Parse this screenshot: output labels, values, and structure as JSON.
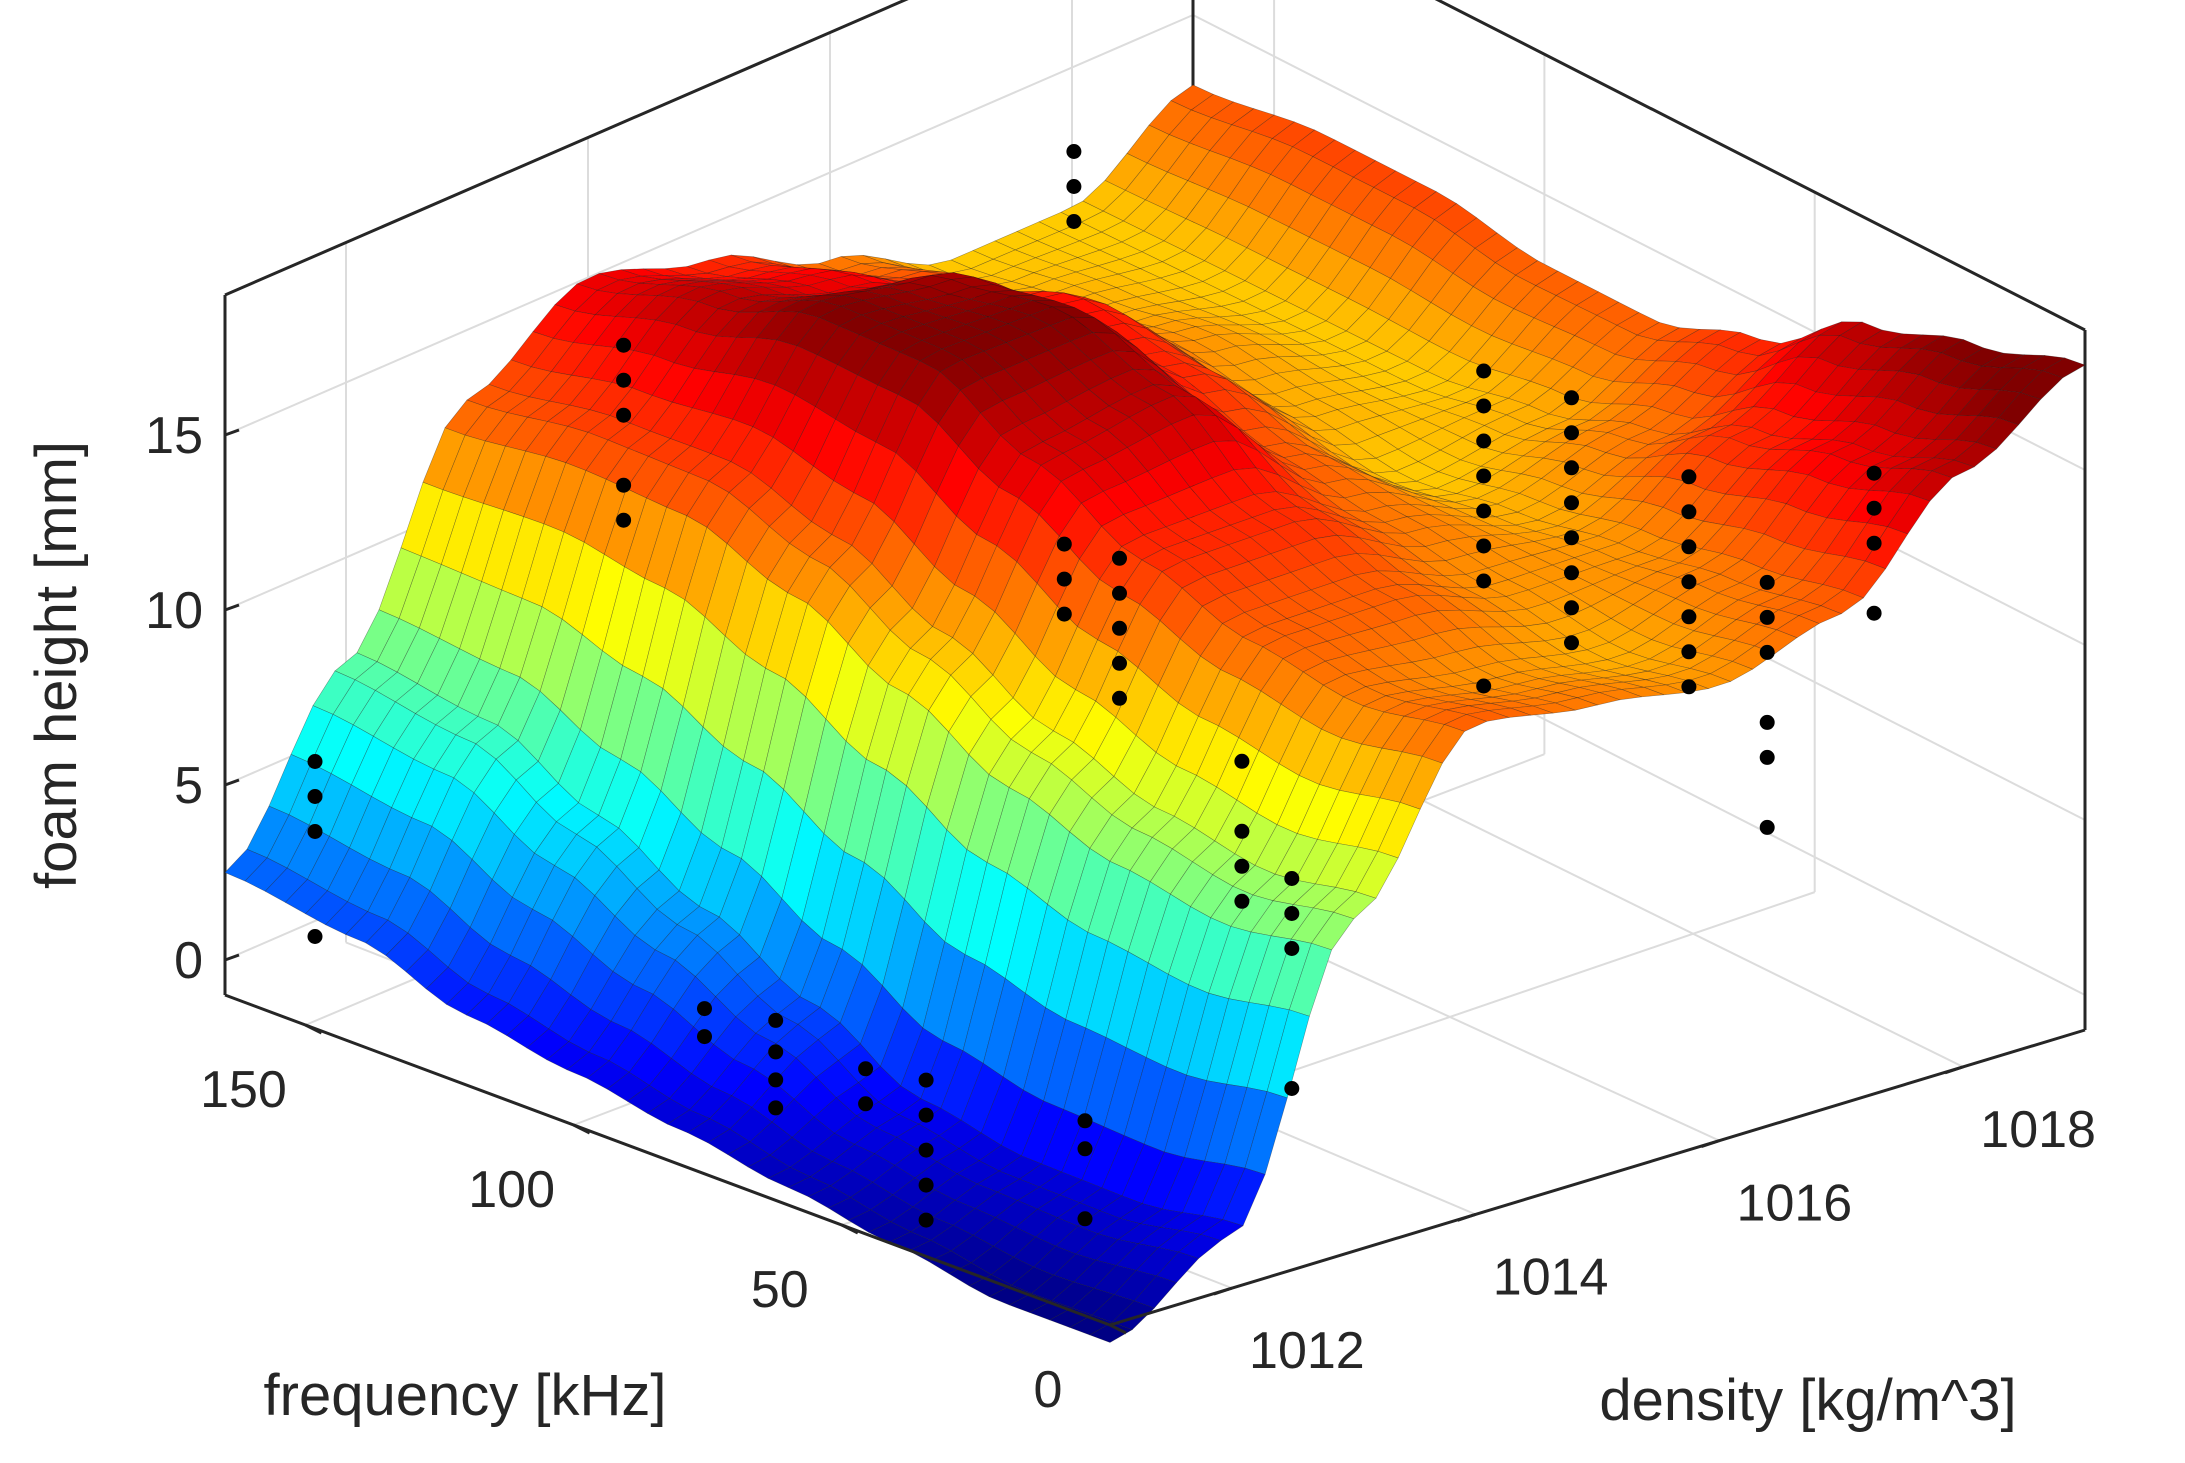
{
  "chart_data": {
    "type": "surface3d",
    "title": "",
    "xlabel": "frequency [kHz]",
    "ylabel": "density [kg/m^3]",
    "zlabel": "foam height [mm]",
    "xlim": [
      0,
      165
    ],
    "ylim": [
      1011,
      1019
    ],
    "zlim": [
      -1,
      19
    ],
    "xticks": [
      0,
      50,
      100,
      150
    ],
    "xtick_labels": [
      "0",
      "50",
      "100",
      "150"
    ],
    "yticks": [
      1012,
      1014,
      1016,
      1018
    ],
    "ytick_labels": [
      "1012",
      "1014",
      "1016",
      "1018"
    ],
    "zticks": [
      0,
      5,
      10,
      15
    ],
    "ztick_labels": [
      "0",
      "5",
      "10",
      "15"
    ],
    "grid": true,
    "colormap": "jet",
    "surface": {
      "frequency": [
        0,
        20,
        40,
        60,
        80,
        100,
        120,
        140,
        165
      ],
      "density": [
        1011,
        1012,
        1013,
        1014,
        1015,
        1016,
        1017,
        1018,
        1019
      ],
      "foam_height": [
        [
          -1.5,
          0.5,
          8.5,
          13.0,
          12.5,
          12.0,
          13.0,
          16.0,
          18.0
        ],
        [
          -1.5,
          0.0,
          8.0,
          12.5,
          12.0,
          11.5,
          12.5,
          15.0,
          17.0
        ],
        [
          -1.0,
          0.0,
          8.5,
          13.0,
          13.0,
          12.0,
          12.0,
          14.0,
          16.0
        ],
        [
          -0.5,
          0.5,
          9.5,
          14.0,
          14.0,
          12.5,
          11.5,
          12.5,
          14.0
        ],
        [
          0.0,
          2.0,
          11.0,
          15.5,
          16.0,
          13.0,
          11.0,
          11.5,
          13.0
        ],
        [
          0.5,
          3.5,
          12.5,
          17.0,
          17.0,
          14.0,
          11.5,
          11.0,
          13.0
        ],
        [
          1.0,
          5.0,
          13.5,
          17.0,
          16.5,
          14.5,
          12.0,
          11.0,
          13.5
        ],
        [
          2.0,
          6.5,
          13.5,
          16.0,
          15.0,
          13.5,
          11.5,
          11.0,
          13.5
        ],
        [
          2.5,
          7.0,
          13.0,
          15.0,
          14.0,
          12.5,
          11.0,
          11.0,
          13.0
        ]
      ]
    },
    "points": [
      {
        "frequency": 155,
        "density": 1011.3,
        "foam_height": [
          0.8,
          3.8,
          4.8,
          5.8
        ]
      },
      {
        "frequency": 102,
        "density": 1011.5,
        "foam_height": [
          15.5,
          16.5,
          18.5,
          19.5,
          20.5
        ]
      },
      {
        "frequency": 105,
        "density": 1012.3,
        "foam_height": [
          -0.5,
          0.3
        ]
      },
      {
        "frequency": 94,
        "density": 1012.4,
        "foam_height": [
          -2.0,
          -1.2,
          -0.4,
          0.5
        ]
      },
      {
        "frequency": 75,
        "density": 1012.3,
        "foam_height": [
          -0.6,
          0.4
        ]
      },
      {
        "frequency": 66,
        "density": 1012.4,
        "foam_height": [
          -3.5,
          -2.5,
          -1.5,
          -0.5,
          0.5
        ]
      },
      {
        "frequency": 90,
        "density": 1014.6,
        "foam_height": [
          9.5,
          10.5,
          11.5
        ]
      },
      {
        "frequency": 82,
        "density": 1014.7,
        "foam_height": [
          7.5,
          8.5,
          9.5,
          10.5,
          11.5
        ]
      },
      {
        "frequency": 50,
        "density": 1013.0,
        "foam_height": [
          -3.2,
          -1.2,
          -0.4
        ]
      },
      {
        "frequency": 122,
        "density": 1016.1,
        "foam_height": [
          16.5,
          17.5,
          18.5
        ]
      },
      {
        "frequency": 57,
        "density": 1014.6,
        "foam_height": [
          3.5,
          4.5,
          5.5,
          7.5
        ]
      },
      {
        "frequency": 50,
        "density": 1014.7,
        "foam_height": [
          -1.5,
          2.5,
          3.5,
          4.5
        ]
      },
      {
        "frequency": 55,
        "density": 1016.5,
        "foam_height": [
          7.5,
          10.5,
          11.5,
          12.5,
          13.5,
          14.5,
          15.5,
          16.5
        ]
      },
      {
        "frequency": 50,
        "density": 1017.0,
        "foam_height": [
          8.5,
          9.5,
          10.5,
          11.5,
          12.5,
          13.5,
          14.5,
          15.5
        ]
      },
      {
        "frequency": 35,
        "density": 1017.3,
        "foam_height": [
          8.0,
          9.0,
          10.0,
          11.0,
          12.0,
          13.0,
          14.0
        ]
      },
      {
        "frequency": 25,
        "density": 1017.5,
        "foam_height": [
          4.5,
          6.5,
          7.5,
          9.5,
          10.5,
          11.5
        ]
      },
      {
        "frequency": 30,
        "density": 1018.6,
        "foam_height": [
          9.0,
          11.0,
          12.0,
          13.0
        ]
      }
    ]
  }
}
